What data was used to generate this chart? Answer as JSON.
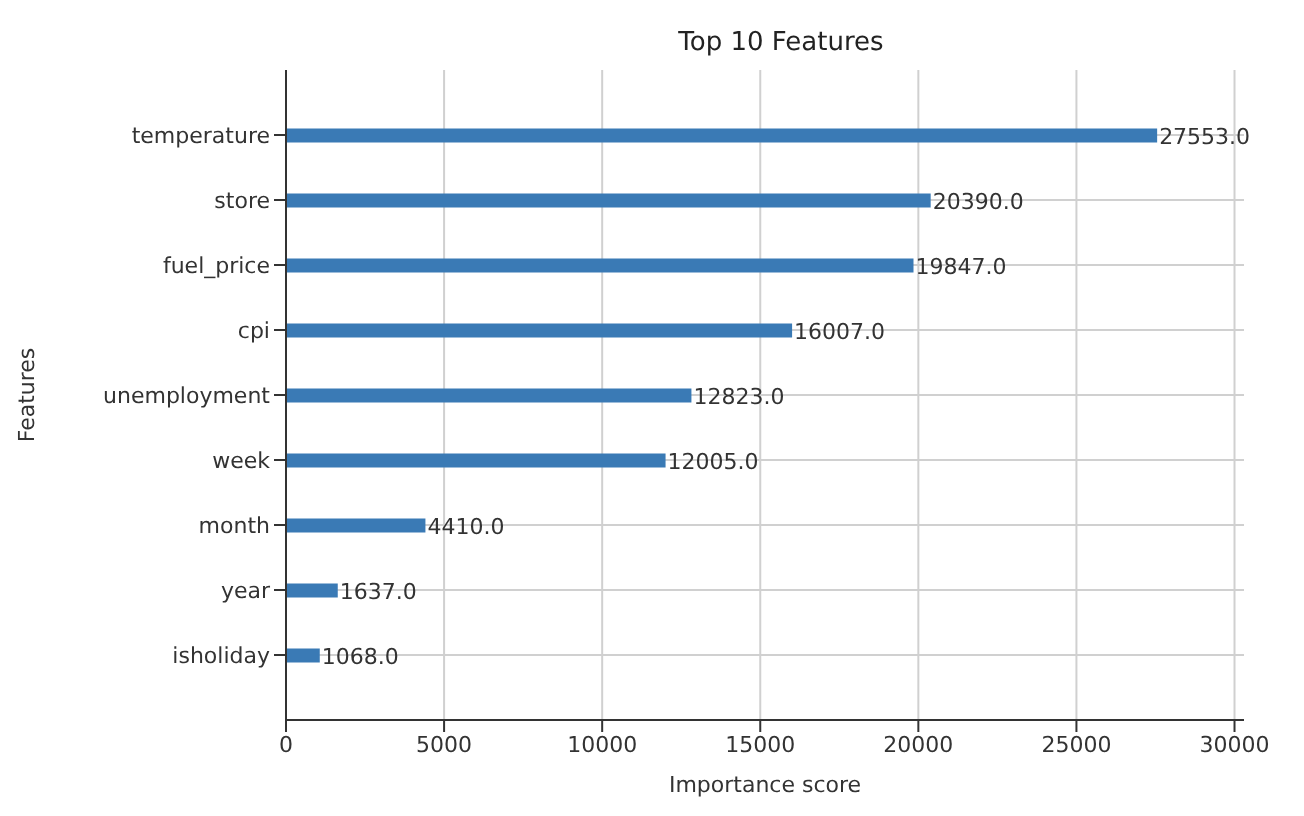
{
  "chart_data": {
    "type": "bar",
    "orientation": "horizontal",
    "title": "Top 10 Features",
    "xlabel": "Importance score",
    "ylabel": "Features",
    "categories": [
      "temperature",
      "store",
      "fuel_price",
      "cpi",
      "unemployment",
      "week",
      "month",
      "year",
      "isholiday"
    ],
    "values": [
      27553,
      20390,
      19847,
      16007,
      12823,
      12005,
      4410,
      1637,
      1068
    ],
    "value_labels": [
      "27553.0",
      "20390.0",
      "19847.0",
      "16007.0",
      "12823.0",
      "12005.0",
      "4410.0",
      "1637.0",
      "1068.0"
    ],
    "color": "#3a7ab5",
    "xlim": [
      0,
      30300
    ],
    "xticks": [
      0,
      5000,
      10000,
      15000,
      20000,
      25000,
      30000
    ],
    "grid": true
  }
}
